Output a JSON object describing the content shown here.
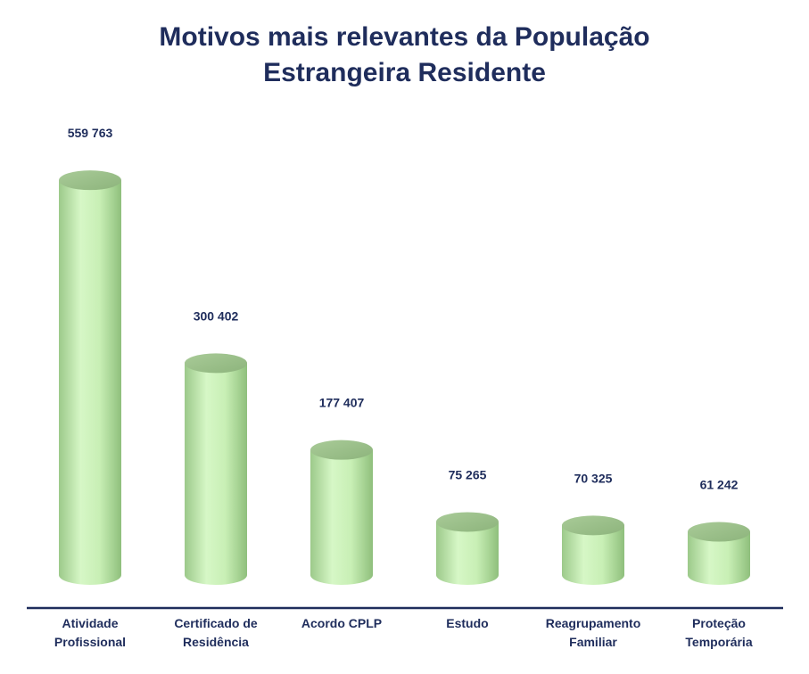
{
  "chart_data": {
    "type": "bar",
    "title_lines": [
      "Motivos mais relevantes da População",
      "Estrangeira Residente"
    ],
    "categories": [
      [
        "Atividade",
        "Profissional"
      ],
      [
        "Certificado de",
        "Residência"
      ],
      [
        "Acordo CPLP"
      ],
      [
        "Estudo"
      ],
      [
        "Reagrupamento",
        "Familiar"
      ],
      [
        "Proteção",
        "Temporária"
      ]
    ],
    "values": [
      559763,
      300402,
      177407,
      75265,
      70325,
      61242
    ],
    "value_labels": [
      "559 763",
      "300 402",
      "177 407",
      "75 265",
      "70 325",
      "61 242"
    ],
    "xlabel": "",
    "ylabel": "",
    "ylim": [
      0,
      560000
    ],
    "grid": false,
    "legend": "none",
    "colors": {
      "bar_light": "#d4f5c2",
      "bar_mid": "#b7e3a3",
      "bar_dark": "#8fbf7c",
      "bar_top": "#9cc08a",
      "axis": "#1f2d5c",
      "text": "#1f2d5c"
    }
  }
}
